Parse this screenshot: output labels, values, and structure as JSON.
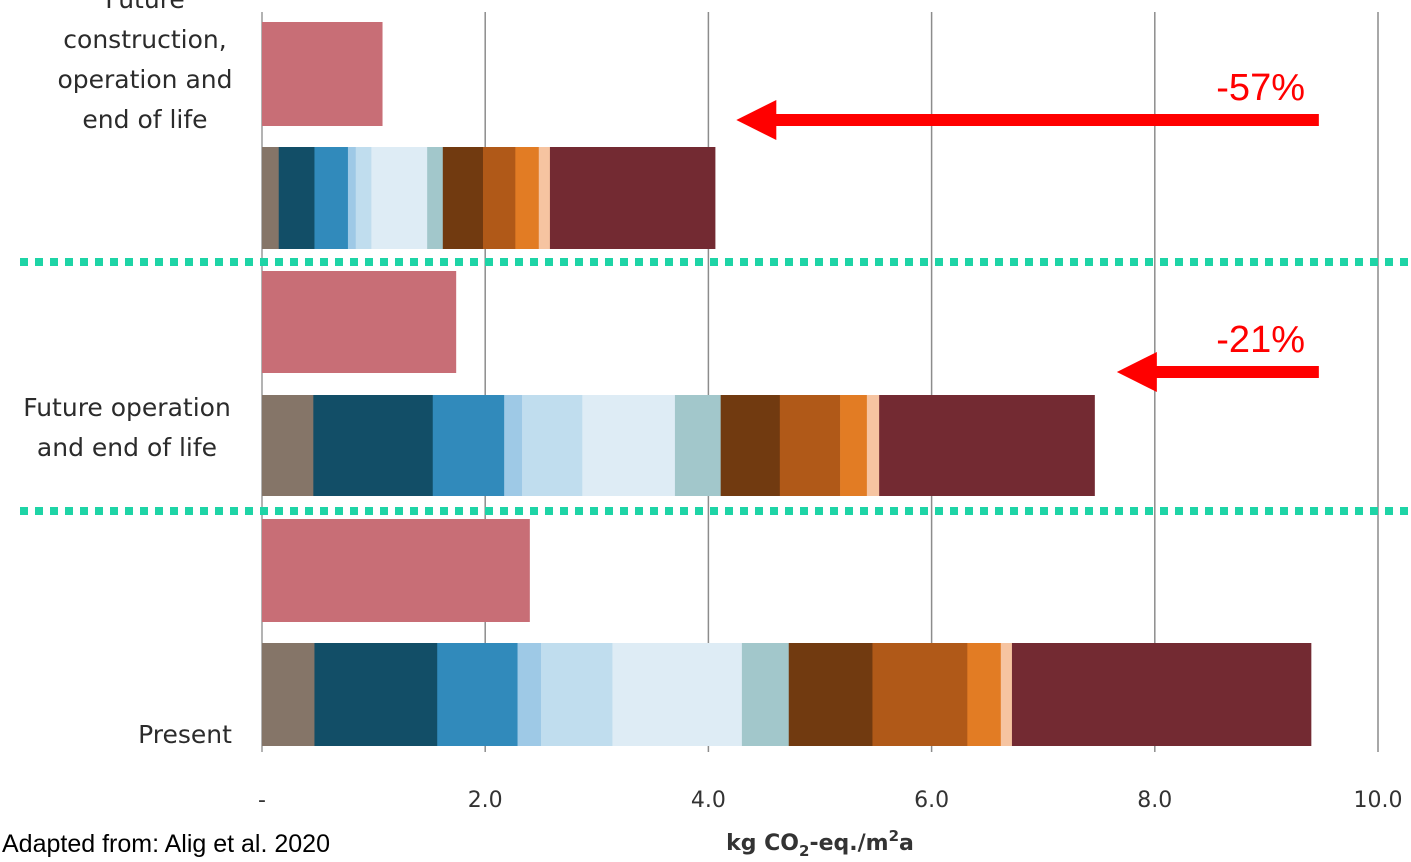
{
  "chart_data": {
    "type": "bar",
    "orientation": "horizontal",
    "stacked": true,
    "xlabel": "kg CO2-eq./m2a",
    "xlabel_parts": {
      "prefix": "kg CO",
      "sub": "2",
      "middle": "-eq./m",
      "sup": "2",
      "suffix": "a"
    },
    "xlim": [
      0,
      10
    ],
    "x_ticks": [
      {
        "value": 0,
        "label": "-"
      },
      {
        "value": 2,
        "label": "2.0"
      },
      {
        "value": 4,
        "label": "4.0"
      },
      {
        "value": 6,
        "label": "6.0"
      },
      {
        "value": 8,
        "label": "8.0"
      },
      {
        "value": 10,
        "label": "10.0"
      }
    ],
    "grid": true,
    "single_bar_color": "#c86e76",
    "segment_colors": [
      "#857568",
      "#124e67",
      "#318abb",
      "#9ec9e6",
      "#c0ddee",
      "#deecf5",
      "#a2c7cb",
      "#713a10",
      "#b05918",
      "#e27c24",
      "#f6c4a1",
      "#732a32"
    ],
    "categories": [
      {
        "label": "Future construction, operation and end of life",
        "label_lines": [
          "Future",
          "construction,",
          "operation and",
          "end of life"
        ],
        "single_bar": 1.08,
        "segments": [
          0.15,
          0.32,
          0.3,
          0.07,
          0.14,
          0.5,
          0.14,
          0.36,
          0.29,
          0.21,
          0.1,
          1.48
        ]
      },
      {
        "label": "Future operation and end of life",
        "label_lines": [
          "Future operation",
          "and end of life"
        ],
        "single_bar": 1.74,
        "segments": [
          0.46,
          1.07,
          0.64,
          0.16,
          0.54,
          0.83,
          0.41,
          0.53,
          0.54,
          0.24,
          0.11,
          1.93
        ]
      },
      {
        "label": "Present",
        "label_lines": [
          "Present"
        ],
        "single_bar": 2.4,
        "segments": [
          0.47,
          1.1,
          0.72,
          0.21,
          0.64,
          1.16,
          0.42,
          0.75,
          0.85,
          0.3,
          0.1,
          2.68
        ]
      }
    ],
    "annotations": [
      {
        "text": "-57%",
        "color": "#ff0000",
        "arrow_from": 9.47,
        "arrow_to": 4.25,
        "category_index": 0
      },
      {
        "text": "-21%",
        "color": "#ff0000",
        "arrow_from": 9.47,
        "arrow_to": 7.66,
        "category_index": 1
      }
    ],
    "separator_color": "#1ed4a6"
  },
  "source": "Adapted from: Alig et al. 2020"
}
